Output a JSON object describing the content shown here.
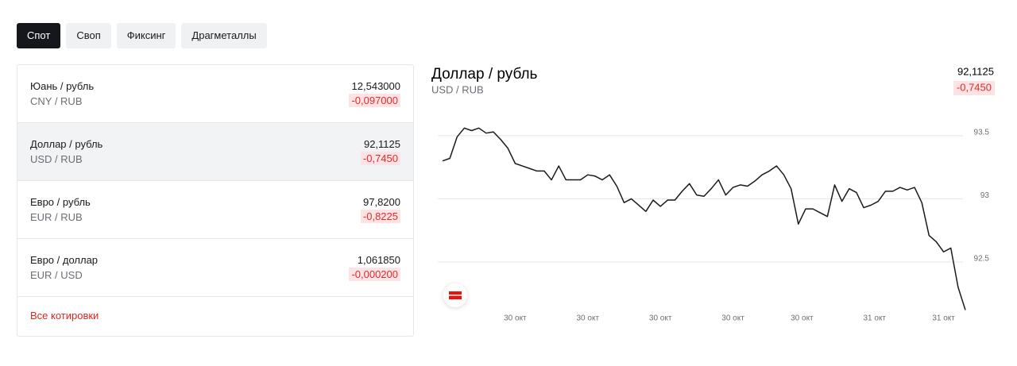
{
  "tabs": [
    {
      "label": "Спот",
      "active": true
    },
    {
      "label": "Своп",
      "active": false
    },
    {
      "label": "Фиксинг",
      "active": false
    },
    {
      "label": "Драгметаллы",
      "active": false
    }
  ],
  "quotes": [
    {
      "name": "Юань / рубль",
      "code": "CNY / RUB",
      "price": "12,543000",
      "change": "-0,097000"
    },
    {
      "name": "Доллар / рубль",
      "code": "USD / RUB",
      "price": "92,1125",
      "change": "-0,7450"
    },
    {
      "name": "Евро / рубль",
      "code": "EUR / RUB",
      "price": "97,8200",
      "change": "-0,8225"
    },
    {
      "name": "Евро / доллар",
      "code": "EUR / USD",
      "price": "1,061850",
      "change": "-0,000200"
    }
  ],
  "selected_quote": 1,
  "all_quotes_link": "Все котировки",
  "chart_data": {
    "type": "line",
    "title": "Доллар / рубль",
    "subtitle": "USD / RUB",
    "price": "92,1125",
    "change": "-0,7450",
    "x": [
      0,
      1,
      2,
      3,
      4,
      5,
      6,
      7,
      8,
      9,
      10,
      11,
      12,
      13,
      14,
      15,
      16,
      17,
      18,
      19,
      20,
      21,
      22,
      23,
      24,
      25,
      26,
      27,
      28,
      29,
      30,
      31,
      32,
      33,
      34,
      35,
      36,
      37,
      38,
      39,
      40,
      41,
      42,
      43,
      44,
      45,
      46,
      47,
      48,
      49,
      50,
      51,
      52,
      53,
      54,
      55,
      56,
      57,
      58,
      59,
      60,
      61,
      62,
      63,
      64,
      65,
      66,
      67,
      68,
      69,
      70,
      71,
      72
    ],
    "values": [
      93.3,
      93.32,
      93.49,
      93.56,
      93.54,
      93.56,
      93.52,
      93.53,
      93.47,
      93.4,
      93.28,
      93.26,
      93.24,
      93.22,
      93.22,
      93.15,
      93.26,
      93.15,
      93.15,
      93.15,
      93.19,
      93.18,
      93.15,
      93.19,
      93.1,
      92.97,
      93.0,
      92.95,
      92.9,
      92.99,
      92.94,
      92.99,
      92.99,
      93.06,
      93.12,
      93.03,
      93.02,
      93.08,
      93.15,
      93.03,
      93.09,
      93.11,
      93.1,
      93.14,
      93.19,
      93.22,
      93.26,
      93.19,
      93.08,
      92.8,
      92.92,
      92.92,
      92.89,
      92.86,
      93.11,
      92.98,
      93.08,
      93.05,
      92.93,
      92.95,
      92.98,
      93.06,
      93.06,
      93.09,
      93.07,
      93.09,
      92.97,
      92.71,
      92.66,
      92.58,
      92.61,
      92.3,
      92.12
    ],
    "color": "#1a1a1a",
    "xlim": [
      0,
      72
    ],
    "xticks": [
      {
        "value": 10,
        "label": "30 окт"
      },
      {
        "value": 20,
        "label": "30 окт"
      },
      {
        "value": 30,
        "label": "30 окт"
      },
      {
        "value": 40,
        "label": "30 окт"
      },
      {
        "value": 49.5,
        "label": "30 окт"
      },
      {
        "value": 59.5,
        "label": "31 окт"
      },
      {
        "value": 69,
        "label": "31 окт"
      }
    ],
    "ylim": [
      92.1,
      93.65
    ],
    "yticks": [
      92.5,
      93,
      93.5
    ],
    "grid": true
  }
}
